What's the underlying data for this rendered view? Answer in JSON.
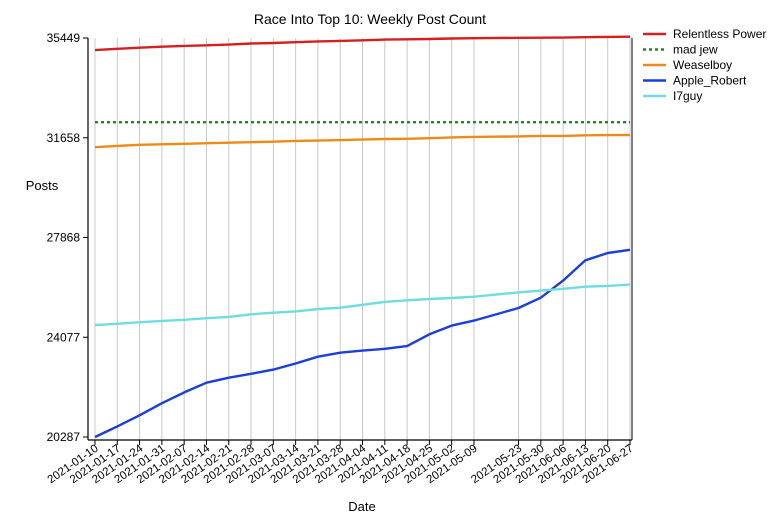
{
  "chart_data": {
    "type": "line",
    "title": "Race Into Top 10: Weekly Post Count",
    "xlabel": "Date",
    "ylabel": "Posts",
    "ylim": [
      20287,
      35449
    ],
    "yticks": [
      20287,
      24077,
      27868,
      31658,
      35449
    ],
    "grid": "vertical",
    "legend_position": "right",
    "x": [
      "2021-01-10",
      "2021-01-17",
      "2021-01-24",
      "2021-01-31",
      "2021-02-07",
      "2021-02-14",
      "2021-02-21",
      "2021-02-28",
      "2021-03-07",
      "2021-03-14",
      "2021-03-21",
      "2021-03-28",
      "2021-04-04",
      "2021-04-11",
      "2021-04-18",
      "2021-04-25",
      "2021-05-02",
      "2021-05-09",
      "2021-05-23",
      "2021-05-30",
      "2021-06-06",
      "2021-06-13",
      "2021-06-20",
      "2021-06-27"
    ],
    "series": [
      {
        "name": "Relentless Power",
        "color": "#d62020",
        "dash": "solid",
        "values": [
          34990,
          35040,
          35080,
          35120,
          35150,
          35170,
          35200,
          35240,
          35260,
          35290,
          35320,
          35340,
          35360,
          35390,
          35400,
          35410,
          35430,
          35440,
          35455,
          35460,
          35465,
          35480,
          35490,
          35500
        ]
      },
      {
        "name": "mad jew",
        "color": "#1a8a1a",
        "dash": "dotted",
        "values": [
          32250,
          32250,
          32250,
          32250,
          32250,
          32250,
          32250,
          32250,
          32250,
          32250,
          32250,
          32250,
          32250,
          32250,
          32250,
          32250,
          32250,
          32250,
          32250,
          32250,
          32250,
          32250,
          32250,
          32250
        ]
      },
      {
        "name": "Weaselboy",
        "color": "#f08a16",
        "dash": "solid",
        "values": [
          31300,
          31350,
          31390,
          31410,
          31430,
          31450,
          31470,
          31490,
          31510,
          31540,
          31550,
          31570,
          31590,
          31610,
          31620,
          31640,
          31670,
          31690,
          31710,
          31730,
          31730,
          31750,
          31760,
          31760
        ]
      },
      {
        "name": "Apple_Robert",
        "color": "#1a3ee0",
        "dash": "solid",
        "values": [
          20287,
          20690,
          21110,
          21570,
          21980,
          22350,
          22540,
          22690,
          22850,
          23080,
          23340,
          23490,
          23570,
          23640,
          23740,
          24190,
          24520,
          24710,
          25190,
          25580,
          26230,
          27000,
          27280,
          27400
        ]
      },
      {
        "name": "I7guy",
        "color": "#6edde0",
        "dash": "solid",
        "values": [
          24540,
          24590,
          24650,
          24700,
          24740,
          24800,
          24850,
          24950,
          25010,
          25060,
          25150,
          25200,
          25310,
          25420,
          25480,
          25530,
          25570,
          25620,
          25780,
          25850,
          25920,
          26000,
          26030,
          26080
        ]
      }
    ]
  }
}
